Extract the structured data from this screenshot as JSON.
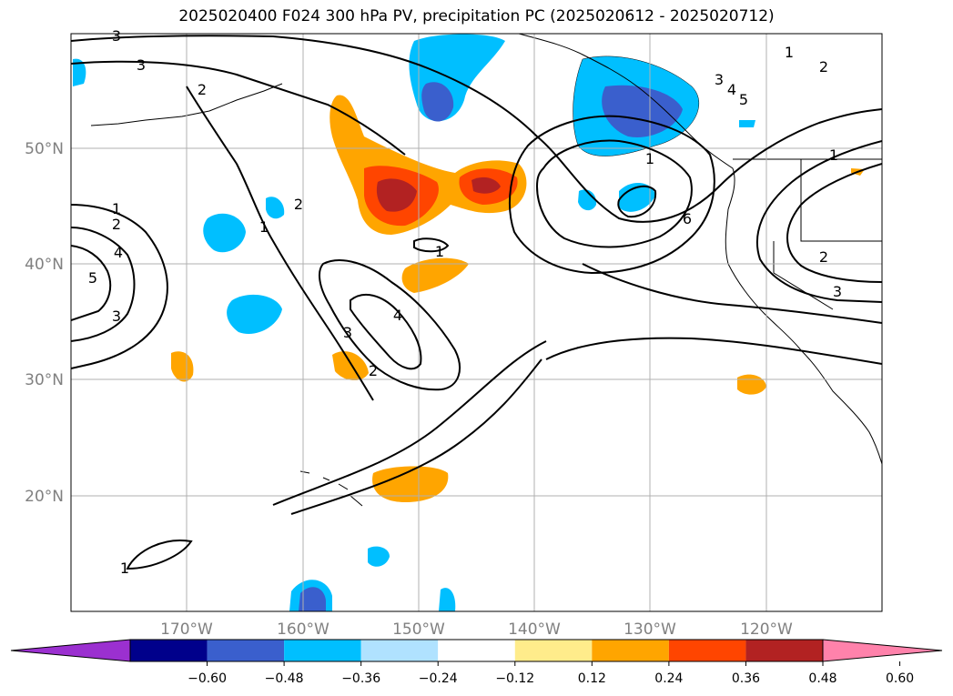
{
  "title": "2025020400 F024 300 hPa PV, precipitation PC (2025020612 - 2025020712)",
  "map": {
    "projection": "plate-carree",
    "lon_range": [
      -180,
      -110
    ],
    "lat_range": [
      10,
      60
    ],
    "lat_labels": [
      "20°N",
      "30°N",
      "40°N",
      "50°N"
    ],
    "lon_labels": [
      "170°W",
      "160°W",
      "150°W",
      "140°W",
      "130°W",
      "120°W"
    ],
    "gridlines": true,
    "pv_contour_labels": [
      "1",
      "2",
      "3",
      "4",
      "5",
      "6"
    ]
  },
  "colorbar": {
    "ticks": [
      "−0.60",
      "−0.48",
      "−0.36",
      "−0.24",
      "−0.12",
      "0.12",
      "0.24",
      "0.36",
      "0.48",
      "0.60"
    ],
    "colors": [
      "#9b30d0",
      "#00008b",
      "#3a5fcd",
      "#00bfff",
      "#b0e2ff",
      "#ffffff",
      "#ffec8b",
      "#ffa500",
      "#ff4500",
      "#b22222",
      "#ff82ab"
    ],
    "extend": "both"
  }
}
